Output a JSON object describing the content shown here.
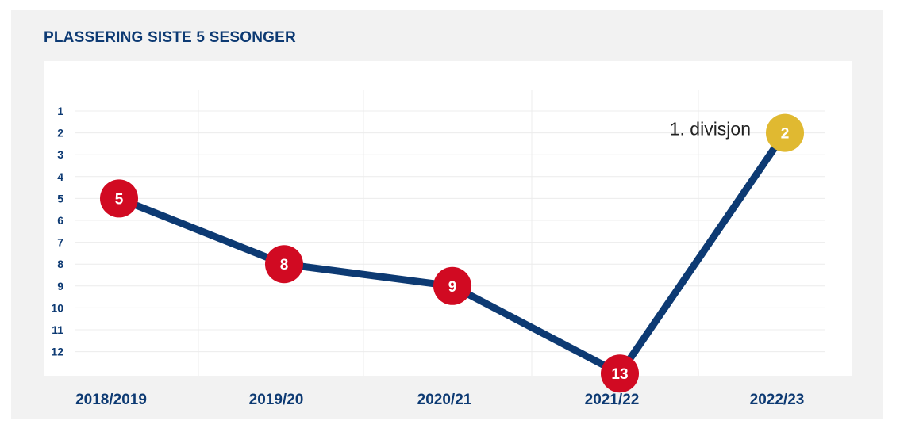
{
  "title": "PLASSERING SISTE 5 SESONGER",
  "chart_data": {
    "type": "line",
    "categories": [
      "2018/2019",
      "2019/20",
      "2020/21",
      "2021/22",
      "2022/23"
    ],
    "values": [
      5,
      8,
      9,
      13,
      2
    ],
    "point_colors": [
      "#d10a22",
      "#d10a22",
      "#d10a22",
      "#d10a22",
      "#e0b931"
    ],
    "line_color": "#0d3a73",
    "ylabels": [
      "1",
      "2",
      "3",
      "4",
      "5",
      "6",
      "7",
      "8",
      "9",
      "10",
      "11",
      "12"
    ],
    "ylim": [
      1,
      13
    ],
    "y_inverted": true,
    "grid": true,
    "annotation": {
      "text": "1. divisjon",
      "index": 4
    }
  }
}
